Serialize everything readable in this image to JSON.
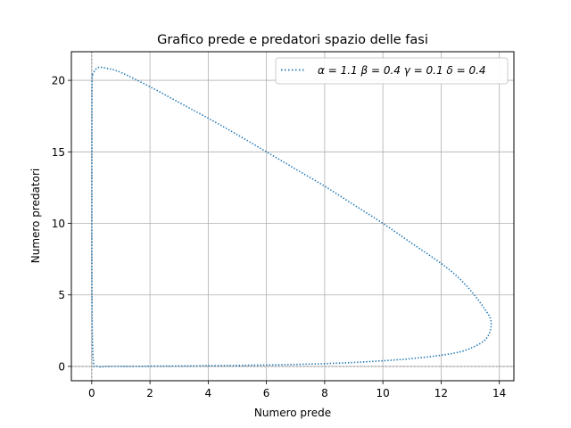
{
  "chart_data": {
    "type": "line",
    "title": "Grafico prede e predatori spazio delle fasi",
    "xlabel": "Numero prede",
    "ylabel": "Numero predatori",
    "xlim": [
      -0.7,
      14.5
    ],
    "ylim": [
      -1.0,
      22.0
    ],
    "xticks": [
      0,
      2,
      4,
      6,
      8,
      10,
      12,
      14
    ],
    "xtick_labels": [
      "0",
      "2",
      "4",
      "6",
      "8",
      "10",
      "12",
      "14"
    ],
    "yticks": [
      0,
      5,
      10,
      15,
      20
    ],
    "ytick_labels": [
      "0",
      "5",
      "10",
      "15",
      "20"
    ],
    "grid": true,
    "legend_position": "top-right",
    "reference_lines": {
      "x": 0,
      "y": 0,
      "style": "dotted",
      "color": "#808080"
    },
    "series": [
      {
        "name": "α = 1.1 β = 0.4 γ = 0.1 δ = 0.4",
        "line_style": "dotted",
        "color": "#1f77b4",
        "x": [
          0.02,
          0.2,
          0.5,
          1,
          2,
          3,
          4,
          5,
          6,
          7,
          8,
          9,
          10,
          11,
          12,
          12.6,
          13.1,
          13.5,
          13.7,
          13.7,
          13.55,
          13.2,
          12.5,
          11.0,
          9.0,
          7.0,
          5.0,
          3.0,
          1.5,
          0.6,
          0.2,
          0.05,
          0.01,
          0.005,
          0.01,
          0.02
        ],
        "y": [
          20.4,
          20.88,
          20.85,
          20.55,
          19.55,
          18.45,
          17.35,
          16.2,
          15.0,
          13.8,
          12.6,
          11.3,
          10.0,
          8.6,
          7.2,
          6.2,
          5.1,
          4.0,
          3.3,
          2.6,
          1.95,
          1.45,
          0.95,
          0.55,
          0.28,
          0.14,
          0.07,
          0.03,
          0.01,
          0.004,
          0.002,
          0.5,
          5.0,
          12.0,
          19.0,
          20.4
        ]
      }
    ]
  }
}
